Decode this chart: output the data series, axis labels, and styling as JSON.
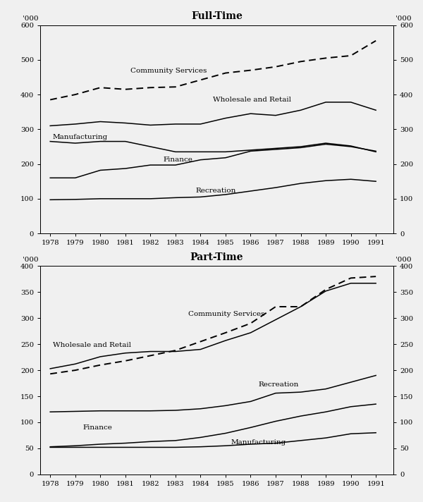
{
  "years": [
    1978,
    1979,
    1980,
    1981,
    1982,
    1983,
    1984,
    1985,
    1986,
    1987,
    1988,
    1989,
    1990,
    1991
  ],
  "fulltime": {
    "community_services": [
      385,
      400,
      420,
      415,
      420,
      422,
      442,
      462,
      470,
      480,
      495,
      505,
      512,
      555
    ],
    "wholesale_retail": [
      310,
      315,
      322,
      318,
      312,
      315,
      315,
      332,
      345,
      340,
      355,
      378,
      378,
      355
    ],
    "manufacturing": [
      265,
      260,
      265,
      265,
      250,
      235,
      235,
      235,
      240,
      245,
      250,
      260,
      252,
      235
    ],
    "finance": [
      160,
      160,
      182,
      187,
      197,
      197,
      212,
      218,
      237,
      242,
      247,
      257,
      250,
      237
    ],
    "recreation": [
      97,
      98,
      100,
      100,
      100,
      103,
      105,
      112,
      122,
      132,
      144,
      152,
      156,
      150
    ]
  },
  "parttime": {
    "community_services": [
      193,
      200,
      210,
      218,
      228,
      238,
      255,
      272,
      290,
      322,
      322,
      355,
      377,
      380
    ],
    "wholesale_retail": [
      203,
      212,
      226,
      233,
      236,
      236,
      240,
      257,
      272,
      297,
      322,
      352,
      367,
      367
    ],
    "recreation": [
      120,
      121,
      122,
      122,
      122,
      123,
      126,
      132,
      140,
      156,
      158,
      164,
      177,
      190
    ],
    "finance": [
      53,
      55,
      58,
      60,
      63,
      65,
      71,
      79,
      90,
      102,
      112,
      120,
      130,
      135
    ],
    "manufacturing": [
      52,
      52,
      52,
      52,
      52,
      52,
      53,
      55,
      58,
      60,
      65,
      70,
      78,
      80
    ]
  },
  "title_ft": "Full-Time",
  "title_pt": "Part-Time",
  "bg_color": "#f0f0f0",
  "fig_bg": "#f0f0f0"
}
